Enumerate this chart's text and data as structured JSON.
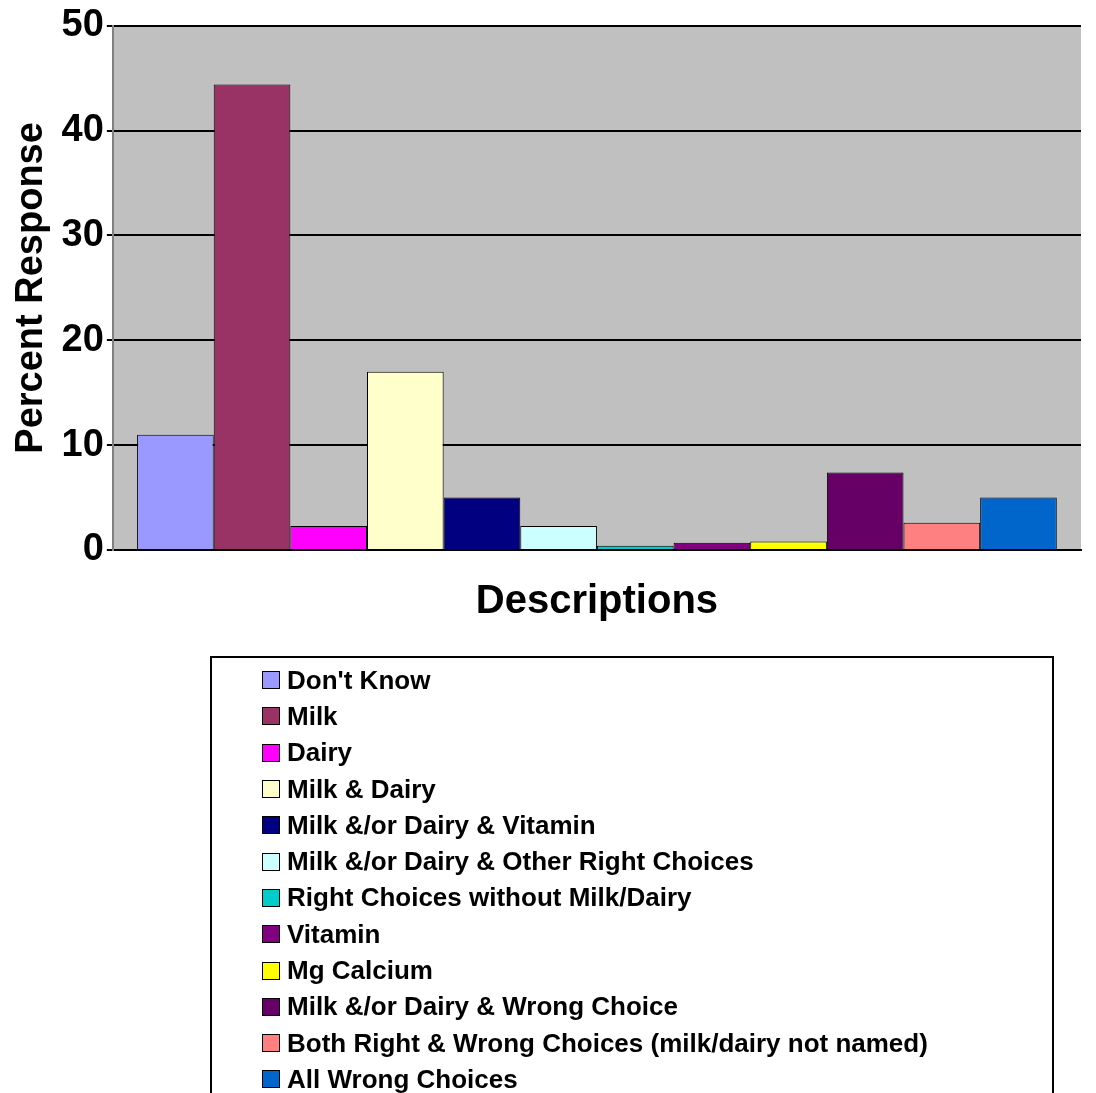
{
  "chart_data": {
    "type": "bar",
    "xlabel": "Descriptions",
    "ylabel": "Percent Response",
    "categories": [
      null
    ],
    "series": [
      {
        "name": "Don't Know",
        "color": "#9999ff",
        "values": [
          11
        ]
      },
      {
        "name": "Milk",
        "color": "#993366",
        "values": [
          44.4
        ]
      },
      {
        "name": "Dairy",
        "color": "#ff00ff",
        "values": [
          2.3
        ]
      },
      {
        "name": "Milk & Dairy",
        "color": "#ffffcc",
        "values": [
          17
        ]
      },
      {
        "name": "Milk &/or Dairy & Vitamin",
        "color": "#000080",
        "values": [
          5
        ]
      },
      {
        "name": "Milk &/or Dairy & Other Right Choices",
        "color": "#ccffff",
        "values": [
          2.3
        ]
      },
      {
        "name": "Right Choices without Milk/Dairy",
        "color": "#00cccc",
        "values": [
          0.4
        ]
      },
      {
        "name": "Vitamin",
        "color": "#800080",
        "values": [
          0.7
        ]
      },
      {
        "name": "Mg Calcium",
        "color": "#ffff00",
        "values": [
          0.8
        ]
      },
      {
        "name": "Milk &/or Dairy & Wrong Choice",
        "color": "#660066",
        "values": [
          7.4
        ]
      },
      {
        "name": "Both Right & Wrong Choices (milk/dairy not named)",
        "color": "#ff8080",
        "values": [
          2.6
        ]
      },
      {
        "name": "All Wrong Choices",
        "color": "#0066cc",
        "values": [
          5
        ]
      }
    ],
    "ylim": [
      0,
      50
    ],
    "yticks": [
      0,
      10,
      20,
      30,
      40,
      50
    ],
    "grid": "y",
    "legend": "bottom",
    "tick_labels": "y"
  }
}
